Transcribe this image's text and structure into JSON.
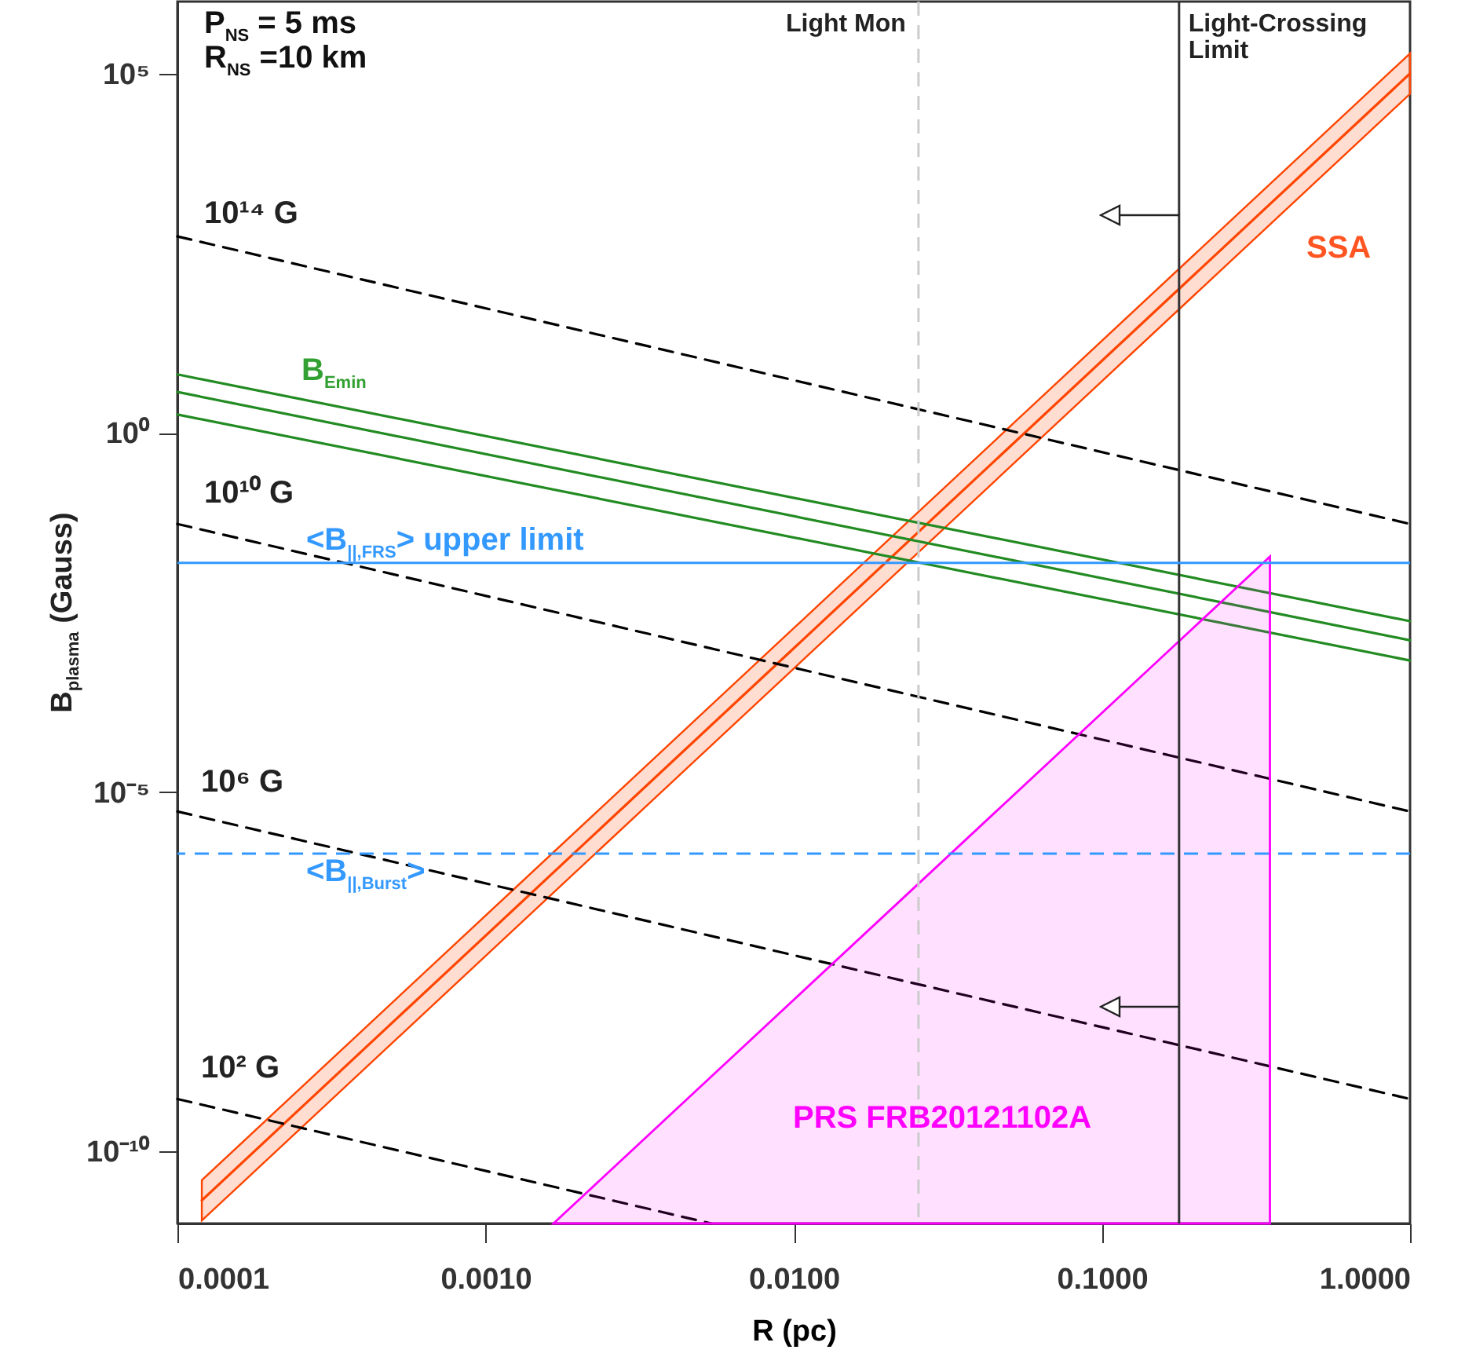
{
  "chart_data": {
    "type": "line",
    "xlabel": "R (pc)",
    "ylabel": "B$_{plasma}$ (Gauss)",
    "log": "xy",
    "xlim": [
      0.0001,
      1
    ],
    "ylim": [
      1e-11,
      1000000
    ],
    "xticks": [
      0.0001,
      {
        "value": 0.001,
        "label": "0.0010"
      },
      {
        "value": 0.01,
        "label": "0.0100"
      },
      {
        "value": 0.1,
        "label": "0.1000"
      },
      {
        "value": 1,
        "label": "1.0000"
      }
    ],
    "yticks": [
      {
        "value": 1e-10,
        "label": "10⁻¹⁰"
      },
      {
        "value": 1e-05,
        "label": "10⁻⁵"
      },
      {
        "value": 1,
        "label": "10⁰"
      },
      {
        "value": 100000,
        "label": "10⁵"
      }
    ],
    "series": [
      {
        "name": "SSA",
        "color": "#ff4500",
        "x": [
          0.00012,
          1
        ],
        "values": [
          2.1e-11,
          100000
        ],
        "lower": [
          1.1e-11,
          52000
        ],
        "upper": [
          4e-11,
          190000
        ]
      },
      {
        "name": "B$_{Emin}$",
        "color": "#228b22",
        "x": [
          0.0001,
          1
        ],
        "values": [
          6.5,
          0.0024
        ]
      },
      {
        "color": "#228b22",
        "x": [
          0.0001,
          1
        ],
        "values": [
          3.7,
          0.0013
        ]
      },
      {
        "color": "#228b22",
        "x": [
          0.0001,
          1
        ],
        "values": [
          1.8,
          0.00068
        ]
      },
      {
        "name": "10¹⁴ G",
        "color": "#000000",
        "line_style": "dashed",
        "x": [
          0.0001,
          1
        ],
        "values": [
          540,
          0.054
        ]
      },
      {
        "name": "10¹⁰ G",
        "color": "#000000",
        "line_style": "dashed",
        "x": [
          0.0001,
          1
        ],
        "values": [
          0.054,
          5.4e-06
        ]
      },
      {
        "name": "10⁶ G",
        "color": "#000000",
        "line_style": "dashed",
        "x": [
          0.0001,
          1
        ],
        "values": [
          5.4e-06,
          5.4e-10
        ]
      },
      {
        "name": "10² G",
        "color": "#000000",
        "line_style": "dashed",
        "x": [
          0.0001,
          0.0054
        ],
        "values": [
          5.4e-10,
          1e-11
        ]
      },
      {
        "name": "PRS FRB20121102A",
        "type": "area",
        "color": "#ff00ff",
        "x": [
          0.00166,
          0.351
        ],
        "values": [
          1e-11,
          0.019
        ]
      }
    ],
    "ref_lines": [
      {
        "axis": "x",
        "value": 0.0254,
        "label": "Light Mon",
        "color": "#cccccc",
        "line_style": "dashed"
      },
      {
        "axis": "x",
        "value": 0.178,
        "label": "Light-Crossing Limit",
        "color": "#333333",
        "line_style": "solid"
      },
      {
        "axis": "y",
        "value": 0.0155,
        "label": "<B$_{||,FRS}$> upper limit",
        "color": "#3399ff",
        "line_style": "solid"
      },
      {
        "axis": "y",
        "value": 1.4e-06,
        "label": "<B$_{||,Burst}$>",
        "color": "#3399ff",
        "line_style": "dashed"
      }
    ],
    "annotations": [
      "P$_{NS}$ = 5 ms",
      "R$_{NS}$ =10 km"
    ]
  }
}
